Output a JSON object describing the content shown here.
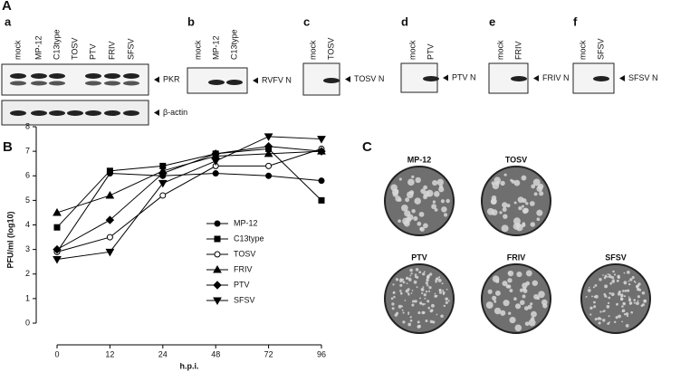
{
  "panel_a": {
    "label": "A",
    "blots": [
      {
        "letter": "a",
        "lanes": [
          "mock",
          "MP-12",
          "C13type",
          "TOSV",
          "PTV",
          "FRIV",
          "SFSV"
        ],
        "bands": [
          "PKR",
          "β-actin"
        ]
      },
      {
        "letter": "b",
        "lanes": [
          "mock",
          "MP-12",
          "C13type"
        ],
        "bands": [
          "RVFV N"
        ]
      },
      {
        "letter": "c",
        "lanes": [
          "mock",
          "TOSV"
        ],
        "bands": [
          "TOSV N"
        ]
      },
      {
        "letter": "d",
        "lanes": [
          "mock",
          "PTV"
        ],
        "bands": [
          "PTV  N"
        ]
      },
      {
        "letter": "e",
        "lanes": [
          "mock",
          "FRIV"
        ],
        "bands": [
          "FRIV N"
        ]
      },
      {
        "letter": "f",
        "lanes": [
          "mock",
          "SFSV"
        ],
        "bands": [
          "SFSV N"
        ]
      }
    ]
  },
  "chart_data": {
    "type": "line",
    "label": "B",
    "x_label": "h.p.i.",
    "y_label": "PFU/ml (log10)",
    "categories": [
      "0",
      "12",
      "24",
      "48",
      "72",
      "96"
    ],
    "ylim": [
      0,
      8
    ],
    "yticks": [
      0,
      1,
      2,
      3,
      4,
      5,
      6,
      7,
      8
    ],
    "series": [
      {
        "name": "MP-12",
        "color": "#000000",
        "marker": "circle",
        "values": [
          2.9,
          6.1,
          6.0,
          6.1,
          6.0,
          5.8
        ]
      },
      {
        "name": "C13type",
        "color": "#000000",
        "marker": "square",
        "values": [
          3.9,
          6.2,
          6.4,
          6.9,
          7.1,
          5.0
        ]
      },
      {
        "name": "TOSV",
        "color": "#000000",
        "marker": "open-circle",
        "values": [
          2.9,
          3.5,
          5.2,
          6.4,
          6.4,
          7.1
        ]
      },
      {
        "name": "FRIV",
        "color": "#000000",
        "marker": "triangle-up",
        "values": [
          4.5,
          5.2,
          6.2,
          6.8,
          6.9,
          7.0
        ]
      },
      {
        "name": "PTV",
        "color": "#000000",
        "marker": "diamond",
        "values": [
          3.0,
          4.2,
          6.1,
          6.9,
          7.2,
          7.0
        ]
      },
      {
        "name": "SFSV",
        "color": "#000000",
        "marker": "triangle-down",
        "values": [
          2.6,
          2.9,
          5.7,
          6.6,
          7.6,
          7.5
        ]
      }
    ]
  },
  "panel_c": {
    "label": "C",
    "plates": [
      "MP-12",
      "TOSV",
      "PTV",
      "FRIV",
      "SFSV"
    ]
  }
}
